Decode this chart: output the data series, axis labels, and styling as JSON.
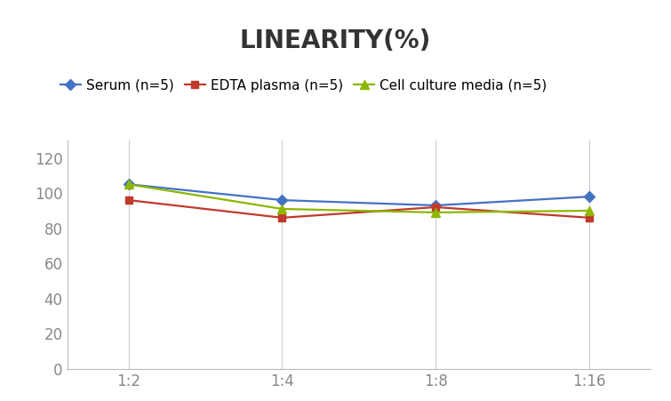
{
  "title": "LINEARITY(%)",
  "x_labels": [
    "1:2",
    "1:4",
    "1:8",
    "1:16"
  ],
  "x_positions": [
    0,
    1,
    2,
    3
  ],
  "series": [
    {
      "label": "Serum (n=5)",
      "values": [
        105,
        96,
        93,
        98
      ],
      "color": "#4472C4",
      "marker": "D",
      "markersize": 6
    },
    {
      "label": "EDTA plasma (n=5)",
      "values": [
        96,
        86,
        92,
        86
      ],
      "color": "#C0392B",
      "marker": "s",
      "markersize": 6
    },
    {
      "label": "Cell culture media (n=5)",
      "values": [
        105,
        91,
        89,
        90
      ],
      "color": "#8DB600",
      "marker": "^",
      "markersize": 7
    }
  ],
  "ylim": [
    0,
    130
  ],
  "yticks": [
    0,
    20,
    40,
    60,
    80,
    100,
    120
  ],
  "background_color": "#ffffff",
  "grid_color": "#cccccc",
  "title_fontsize": 20,
  "legend_fontsize": 11,
  "tick_fontsize": 12,
  "tick_color": "#888888"
}
